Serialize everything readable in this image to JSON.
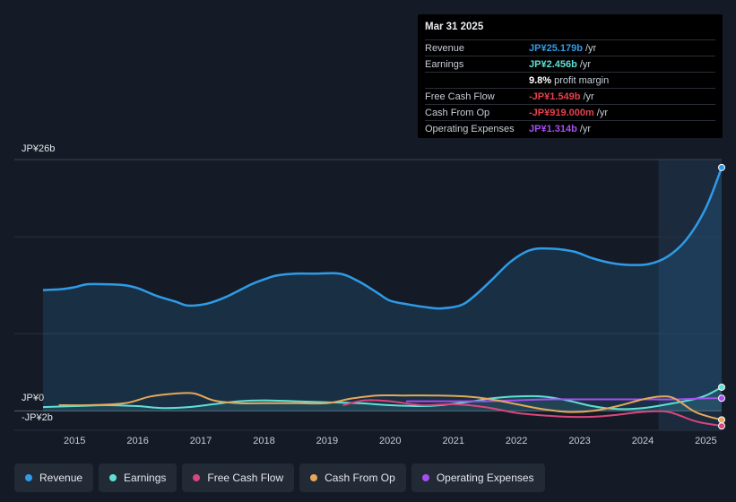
{
  "tooltip": {
    "date": "Mar 31 2025",
    "rows": [
      {
        "label": "Revenue",
        "value": "JP¥25.179b",
        "unit": "/yr",
        "color": "#2f9be8"
      },
      {
        "label": "Earnings",
        "value": "JP¥2.456b",
        "unit": "/yr",
        "color": "#5fe0d6"
      },
      {
        "label": "",
        "value": "9.8%",
        "unit": "profit margin",
        "color": "#ffffff"
      },
      {
        "label": "Free Cash Flow",
        "value": "-JP¥1.549b",
        "unit": "/yr",
        "color": "#e5404e"
      },
      {
        "label": "Cash From Op",
        "value": "-JP¥919.000m",
        "unit": "/yr",
        "color": "#e5404e"
      },
      {
        "label": "Operating Expenses",
        "value": "JP¥1.314b",
        "unit": "/yr",
        "color": "#a64ef0"
      }
    ]
  },
  "legend": [
    {
      "label": "Revenue",
      "color": "#2f9be8"
    },
    {
      "label": "Earnings",
      "color": "#5fe0d6"
    },
    {
      "label": "Free Cash Flow",
      "color": "#d9467e"
    },
    {
      "label": "Cash From Op",
      "color": "#e5a85a"
    },
    {
      "label": "Operating Expenses",
      "color": "#a64ef0"
    }
  ],
  "chart_data": {
    "type": "line",
    "y_axis_labels": {
      "top": "JP¥26b",
      "zero": "JP¥0",
      "bottom": "-JP¥2b"
    },
    "ylim": [
      -2,
      26
    ],
    "xlim": [
      2014.5,
      2025.25
    ],
    "x_ticks": [
      "2015",
      "2016",
      "2017",
      "2018",
      "2019",
      "2020",
      "2021",
      "2022",
      "2023",
      "2024",
      "2025"
    ],
    "highlight_start": 2024.25,
    "series": [
      {
        "name": "Revenue",
        "color": "#2f9be8",
        "area": true,
        "points": [
          [
            2014.5,
            12.5
          ],
          [
            2014.8,
            12.6
          ],
          [
            2015.0,
            12.8
          ],
          [
            2015.2,
            13.1
          ],
          [
            2015.5,
            13.1
          ],
          [
            2015.8,
            13.0
          ],
          [
            2016.0,
            12.7
          ],
          [
            2016.3,
            11.9
          ],
          [
            2016.6,
            11.3
          ],
          [
            2016.8,
            10.9
          ],
          [
            2017.1,
            11.1
          ],
          [
            2017.4,
            11.8
          ],
          [
            2017.8,
            13.1
          ],
          [
            2018.0,
            13.6
          ],
          [
            2018.2,
            14.0
          ],
          [
            2018.5,
            14.2
          ],
          [
            2018.8,
            14.2
          ],
          [
            2019.2,
            14.2
          ],
          [
            2019.5,
            13.4
          ],
          [
            2019.8,
            12.2
          ],
          [
            2020.0,
            11.4
          ],
          [
            2020.3,
            11.0
          ],
          [
            2020.6,
            10.7
          ],
          [
            2020.8,
            10.6
          ],
          [
            2021.1,
            10.9
          ],
          [
            2021.3,
            11.7
          ],
          [
            2021.6,
            13.5
          ],
          [
            2021.9,
            15.4
          ],
          [
            2022.2,
            16.6
          ],
          [
            2022.5,
            16.8
          ],
          [
            2022.9,
            16.5
          ],
          [
            2023.2,
            15.8
          ],
          [
            2023.5,
            15.3
          ],
          [
            2023.8,
            15.1
          ],
          [
            2024.1,
            15.2
          ],
          [
            2024.4,
            16.0
          ],
          [
            2024.7,
            17.8
          ],
          [
            2025.0,
            21.0
          ],
          [
            2025.25,
            25.179
          ]
        ]
      },
      {
        "name": "Earnings",
        "color": "#5fe0d6",
        "area": true,
        "points": [
          [
            2014.5,
            0.4
          ],
          [
            2015.0,
            0.5
          ],
          [
            2015.5,
            0.6
          ],
          [
            2016.0,
            0.5
          ],
          [
            2016.4,
            0.3
          ],
          [
            2016.8,
            0.4
          ],
          [
            2017.2,
            0.7
          ],
          [
            2017.6,
            1.0
          ],
          [
            2018.0,
            1.1
          ],
          [
            2018.5,
            1.0
          ],
          [
            2019.0,
            0.9
          ],
          [
            2019.5,
            0.8
          ],
          [
            2020.0,
            0.6
          ],
          [
            2020.5,
            0.5
          ],
          [
            2020.8,
            0.6
          ],
          [
            2021.3,
            1.0
          ],
          [
            2021.6,
            1.3
          ],
          [
            2022.0,
            1.5
          ],
          [
            2022.4,
            1.5
          ],
          [
            2022.8,
            1.1
          ],
          [
            2023.2,
            0.5
          ],
          [
            2023.6,
            0.2
          ],
          [
            2024.0,
            0.3
          ],
          [
            2024.4,
            0.7
          ],
          [
            2024.8,
            1.2
          ],
          [
            2025.0,
            1.6
          ],
          [
            2025.25,
            2.456
          ]
        ]
      },
      {
        "name": "Free Cash Flow",
        "color": "#d9467e",
        "area": false,
        "points": [
          [
            2019.25,
            0.6
          ],
          [
            2019.6,
            1.1
          ],
          [
            2020.0,
            1.0
          ],
          [
            2020.5,
            0.6
          ],
          [
            2021.0,
            0.7
          ],
          [
            2021.5,
            0.4
          ],
          [
            2022.0,
            -0.2
          ],
          [
            2022.5,
            -0.5
          ],
          [
            2022.8,
            -0.6
          ],
          [
            2023.2,
            -0.6
          ],
          [
            2023.6,
            -0.4
          ],
          [
            2024.0,
            -0.1
          ],
          [
            2024.4,
            -0.1
          ],
          [
            2024.8,
            -1.0
          ],
          [
            2025.0,
            -1.3
          ],
          [
            2025.25,
            -1.549
          ]
        ]
      },
      {
        "name": "Cash From Op",
        "color": "#e5a85a",
        "area": false,
        "points": [
          [
            2014.75,
            0.6
          ],
          [
            2015.2,
            0.6
          ],
          [
            2015.8,
            0.8
          ],
          [
            2016.2,
            1.5
          ],
          [
            2016.6,
            1.8
          ],
          [
            2016.9,
            1.8
          ],
          [
            2017.2,
            1.1
          ],
          [
            2017.6,
            0.8
          ],
          [
            2018.0,
            0.8
          ],
          [
            2018.5,
            0.8
          ],
          [
            2019.0,
            0.8
          ],
          [
            2019.4,
            1.3
          ],
          [
            2019.8,
            1.6
          ],
          [
            2020.2,
            1.6
          ],
          [
            2020.7,
            1.6
          ],
          [
            2021.2,
            1.5
          ],
          [
            2021.6,
            1.2
          ],
          [
            2022.0,
            0.7
          ],
          [
            2022.4,
            0.2
          ],
          [
            2022.8,
            -0.1
          ],
          [
            2023.2,
            0.0
          ],
          [
            2023.6,
            0.5
          ],
          [
            2024.0,
            1.2
          ],
          [
            2024.3,
            1.5
          ],
          [
            2024.5,
            1.3
          ],
          [
            2024.8,
            0.0
          ],
          [
            2025.0,
            -0.5
          ],
          [
            2025.25,
            -0.919
          ]
        ]
      },
      {
        "name": "Operating Expenses",
        "color": "#a64ef0",
        "area": false,
        "points": [
          [
            2020.25,
            1.0
          ],
          [
            2021.0,
            1.0
          ],
          [
            2021.5,
            1.0
          ],
          [
            2022.0,
            1.1
          ],
          [
            2022.5,
            1.2
          ],
          [
            2023.0,
            1.2
          ],
          [
            2023.5,
            1.2
          ],
          [
            2024.0,
            1.2
          ],
          [
            2024.5,
            1.2
          ],
          [
            2025.0,
            1.3
          ],
          [
            2025.25,
            1.314
          ]
        ]
      }
    ]
  }
}
